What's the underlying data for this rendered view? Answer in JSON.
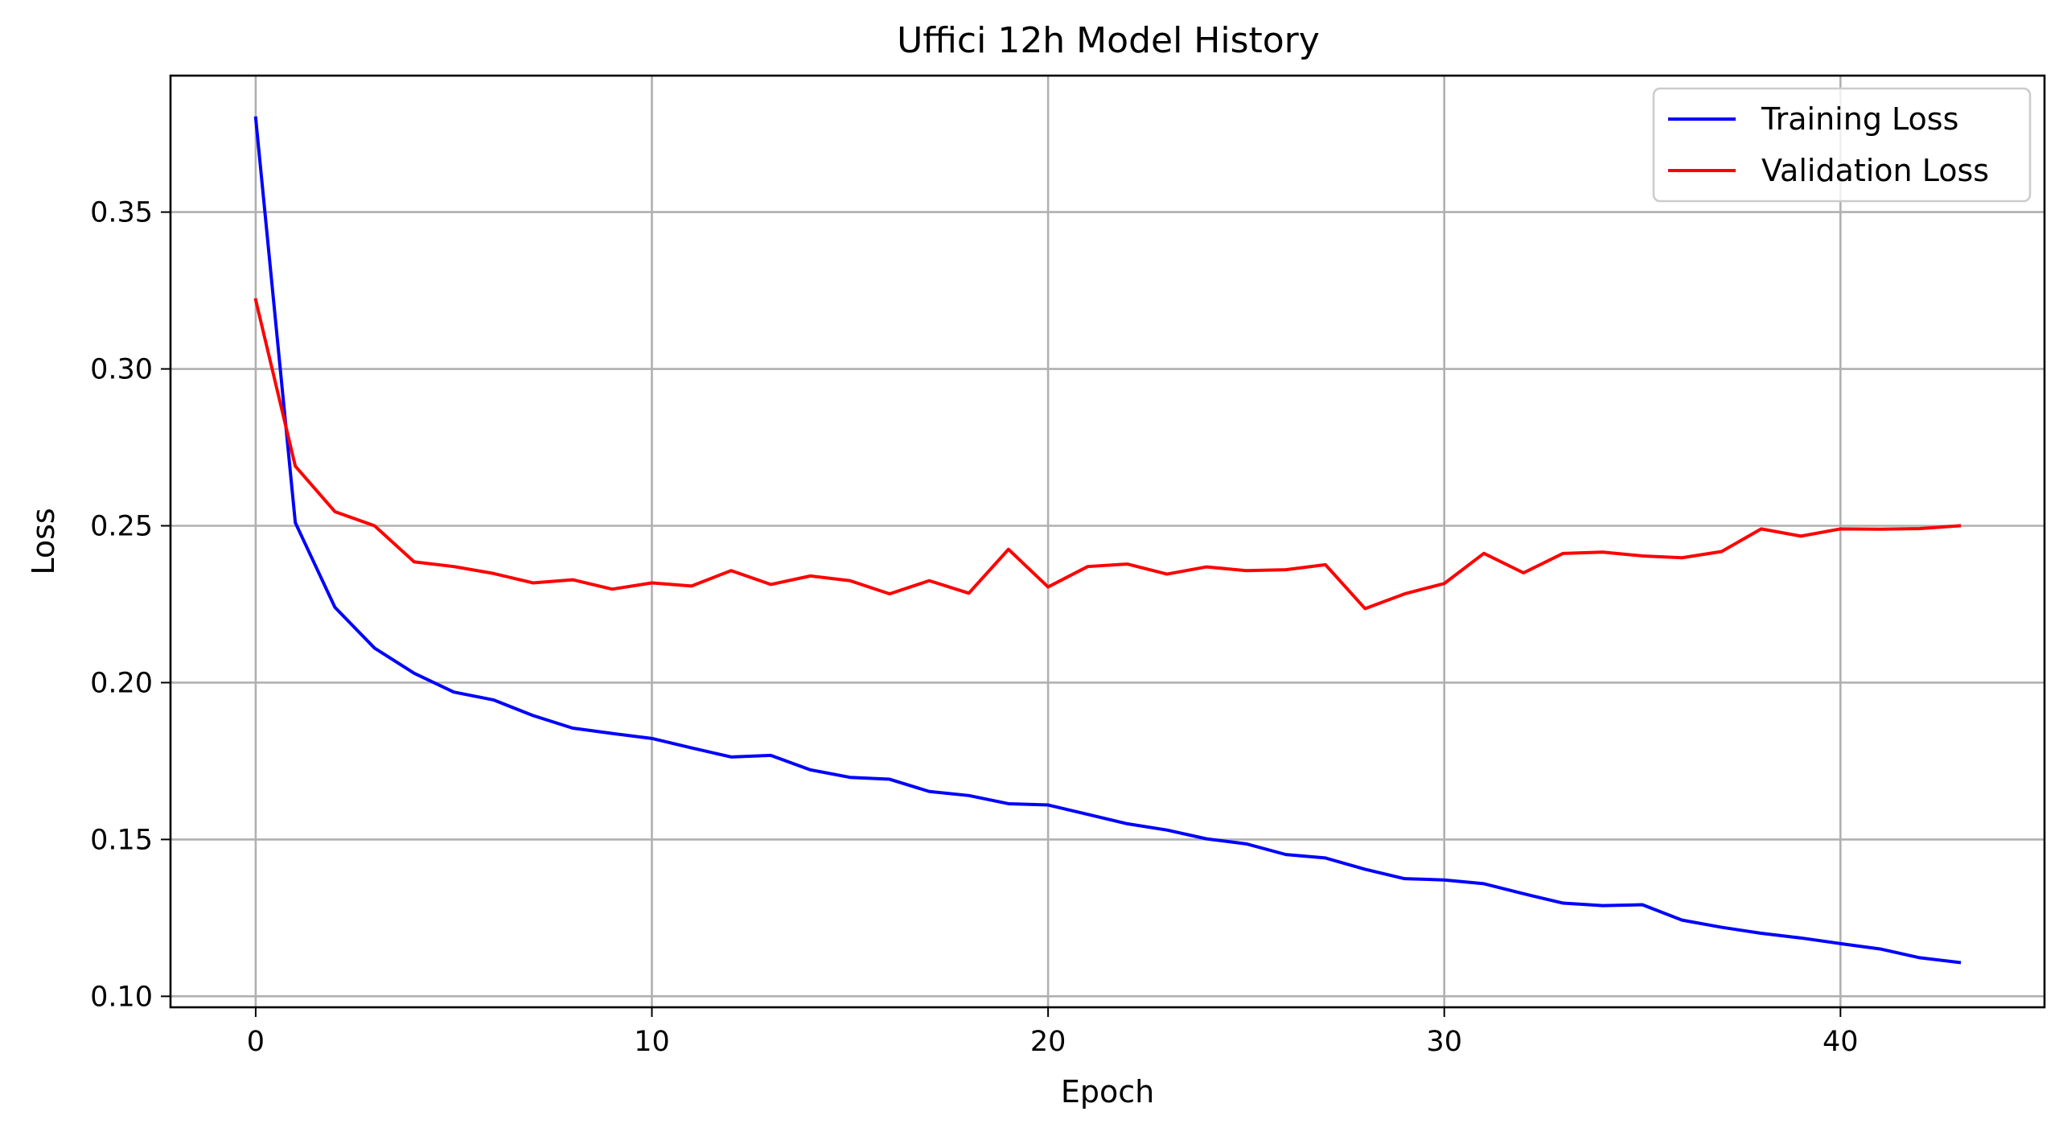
{
  "chart_data": {
    "type": "line",
    "title": "Uffici 12h Model History",
    "xlabel": "Epoch",
    "ylabel": "Loss",
    "xlim": [
      -2.15,
      45.15
    ],
    "ylim": [
      0.0965,
      0.3935
    ],
    "xticks": [
      0,
      10,
      20,
      30,
      40
    ],
    "xtick_labels": [
      "0",
      "10",
      "20",
      "30",
      "40"
    ],
    "yticks": [
      0.1,
      0.15,
      0.2,
      0.25,
      0.3,
      0.35
    ],
    "ytick_labels": [
      "0.10",
      "0.15",
      "0.20",
      "0.25",
      "0.30",
      "0.35"
    ],
    "grid": true,
    "legend_position": "top-right",
    "x": [
      0,
      1,
      2,
      3,
      4,
      5,
      6,
      7,
      8,
      9,
      10,
      11,
      12,
      13,
      14,
      15,
      16,
      17,
      18,
      19,
      20,
      21,
      22,
      23,
      24,
      25,
      26,
      27,
      28,
      29,
      30,
      31,
      32,
      33,
      34,
      35,
      36,
      37,
      38,
      39,
      40,
      41,
      42,
      43
    ],
    "series": [
      {
        "name": "Training Loss",
        "color": "#0000ff",
        "values": [
          0.38,
          0.251,
          0.224,
          0.211,
          0.203,
          0.197,
          0.1945,
          0.1895,
          0.1855,
          0.1838,
          0.1822,
          0.1792,
          0.1763,
          0.1768,
          0.1722,
          0.1698,
          0.1692,
          0.1653,
          0.164,
          0.1614,
          0.161,
          0.158,
          0.155,
          0.153,
          0.1502,
          0.1486,
          0.1452,
          0.1441,
          0.1405,
          0.1375,
          0.1371,
          0.1359,
          0.1327,
          0.1297,
          0.1289,
          0.1292,
          0.1243,
          0.122,
          0.1201,
          0.1186,
          0.1168,
          0.1151,
          0.1123,
          0.1108
        ]
      },
      {
        "name": "Validation Loss",
        "color": "#ff0000",
        "values": [
          0.322,
          0.269,
          0.2545,
          0.25,
          0.2385,
          0.237,
          0.2348,
          0.2318,
          0.2328,
          0.2298,
          0.2318,
          0.2308,
          0.2357,
          0.2313,
          0.234,
          0.2325,
          0.2283,
          0.2325,
          0.2285,
          0.2425,
          0.2305,
          0.237,
          0.2378,
          0.2346,
          0.2369,
          0.2357,
          0.236,
          0.2376,
          0.2236,
          0.2283,
          0.2316,
          0.2412,
          0.235,
          0.2412,
          0.2416,
          0.2404,
          0.2398,
          0.2418,
          0.249,
          0.2467,
          0.249,
          0.2489,
          0.2491,
          0.25
        ]
      }
    ]
  }
}
